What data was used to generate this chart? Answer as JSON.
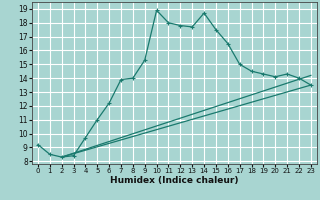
{
  "xlabel": "Humidex (Indice chaleur)",
  "bg_color": "#a8d5d1",
  "grid_color": "#ffffff",
  "line_color": "#1a7a6e",
  "xlim": [
    -0.5,
    23.5
  ],
  "ylim": [
    7.8,
    19.5
  ],
  "xticks": [
    0,
    1,
    2,
    3,
    4,
    5,
    6,
    7,
    8,
    9,
    10,
    11,
    12,
    13,
    14,
    15,
    16,
    17,
    18,
    19,
    20,
    21,
    22,
    23
  ],
  "yticks": [
    8,
    9,
    10,
    11,
    12,
    13,
    14,
    15,
    16,
    17,
    18,
    19
  ],
  "curve1_x": [
    0,
    1,
    2,
    3,
    4,
    5,
    6,
    7,
    8,
    9,
    10,
    11,
    12,
    13,
    14,
    15,
    16,
    17,
    18,
    19,
    20,
    21,
    22,
    23
  ],
  "curve1_y": [
    9.2,
    8.5,
    8.3,
    8.4,
    9.7,
    11.0,
    12.2,
    13.9,
    14.0,
    15.3,
    18.9,
    18.0,
    17.8,
    17.7,
    18.7,
    17.5,
    16.5,
    15.0,
    14.5,
    14.3,
    14.1,
    14.3,
    14.0,
    13.5
  ],
  "curve2_x": [
    2,
    23
  ],
  "curve2_y": [
    8.3,
    13.5
  ],
  "curve3_x": [
    2,
    23
  ],
  "curve3_y": [
    8.3,
    14.2
  ]
}
